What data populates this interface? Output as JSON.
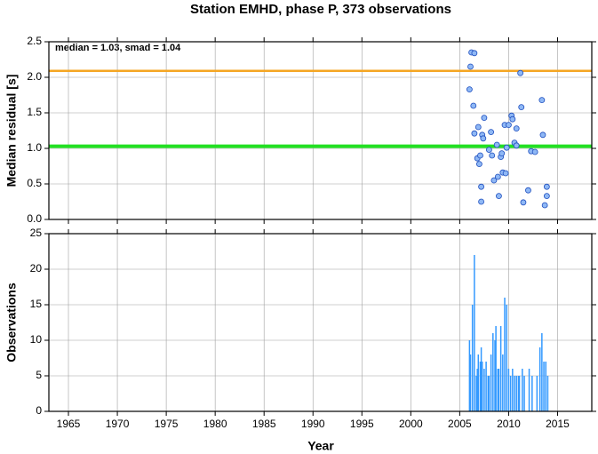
{
  "chart_data": [
    {
      "type": "scatter",
      "title": "Station EMHD, phase P, 373 observations",
      "ylabel": "Median residual [s]",
      "annotation": "median = 1.03, smad = 1.04",
      "lines": [
        {
          "value": 2.09,
          "color": "#f5a623"
        },
        {
          "value": 1.03,
          "color": "#22e022"
        }
      ],
      "x": [
        2006.2,
        2006.5,
        2006.1,
        2006.0,
        2006.4,
        2006.5,
        2006.9,
        2006.8,
        2007.1,
        2007.0,
        2007.3,
        2007.5,
        2007.4,
        2007.2,
        2007.2,
        2008.0,
        2008.2,
        2008.3,
        2008.5,
        2008.9,
        2008.8,
        2009.0,
        2009.2,
        2009.3,
        2009.4,
        2009.7,
        2009.6,
        2010.0,
        2009.8,
        2010.3,
        2010.4,
        2010.6,
        2010.8,
        2010.8,
        2011.2,
        2011.3,
        2011.5,
        2012.0,
        2012.3,
        2012.7,
        2013.4,
        2013.5,
        2013.7,
        2013.9,
        2013.9
      ],
      "values": [
        2.35,
        2.34,
        2.15,
        1.83,
        1.6,
        1.21,
        1.3,
        0.86,
        0.9,
        0.78,
        1.19,
        1.43,
        1.14,
        0.46,
        0.25,
        0.98,
        1.23,
        0.9,
        0.55,
        0.6,
        1.05,
        0.33,
        0.88,
        0.93,
        0.66,
        0.65,
        1.33,
        1.33,
        1.01,
        1.46,
        1.41,
        1.08,
        1.04,
        1.28,
        2.06,
        1.58,
        0.24,
        0.41,
        0.96,
        0.95,
        1.68,
        1.19,
        0.2,
        0.46,
        0.33
      ],
      "color": "#8fb8f5",
      "edgecolor": "#1f4fbf",
      "xlim": [
        1963,
        2018.5
      ],
      "xticks": [
        1965,
        1970,
        1975,
        1980,
        1985,
        1990,
        1995,
        2000,
        2005,
        2010,
        2015
      ],
      "ylim": [
        0,
        2.5
      ],
      "yticks": [
        {
          "value": 0,
          "label": "0.0"
        },
        0.5,
        {
          "value": 1,
          "label": "1.0"
        },
        1.5,
        {
          "value": 2,
          "label": "2.0"
        },
        2.5
      ],
      "grid": true
    },
    {
      "type": "bar",
      "xlabel": "Year",
      "ylabel": "Observations",
      "x": [
        2006.0,
        2006.1,
        2006.3,
        2006.5,
        2006.7,
        2006.8,
        2006.9,
        2007.1,
        2007.2,
        2007.3,
        2007.5,
        2007.7,
        2007.9,
        2008.0,
        2008.2,
        2008.4,
        2008.6,
        2008.7,
        2008.9,
        2009.0,
        2009.2,
        2009.4,
        2009.6,
        2009.8,
        2010.0,
        2010.2,
        2010.4,
        2010.6,
        2010.8,
        2011.0,
        2011.1,
        2011.4,
        2011.6,
        2012.1,
        2012.4,
        2012.9,
        2013.2,
        2013.4,
        2013.6,
        2013.8,
        2014.0
      ],
      "values": [
        10,
        8,
        15,
        22,
        5,
        6,
        8,
        7,
        9,
        7,
        6,
        7,
        5,
        5,
        8,
        11,
        10,
        12,
        6,
        6,
        12,
        8,
        16,
        15,
        6,
        5,
        6,
        5,
        5,
        5,
        5,
        6,
        5,
        6,
        5,
        5,
        9,
        11,
        7,
        7,
        5
      ],
      "color": "#3399ff",
      "xlim": [
        1963,
        2018.5
      ],
      "xticks": [
        1965,
        1970,
        1975,
        1980,
        1985,
        1990,
        1995,
        2000,
        2005,
        2010,
        2015
      ],
      "ylim": [
        0,
        25
      ],
      "yticks": [
        0,
        5,
        10,
        15,
        20,
        25
      ],
      "grid": true
    }
  ]
}
